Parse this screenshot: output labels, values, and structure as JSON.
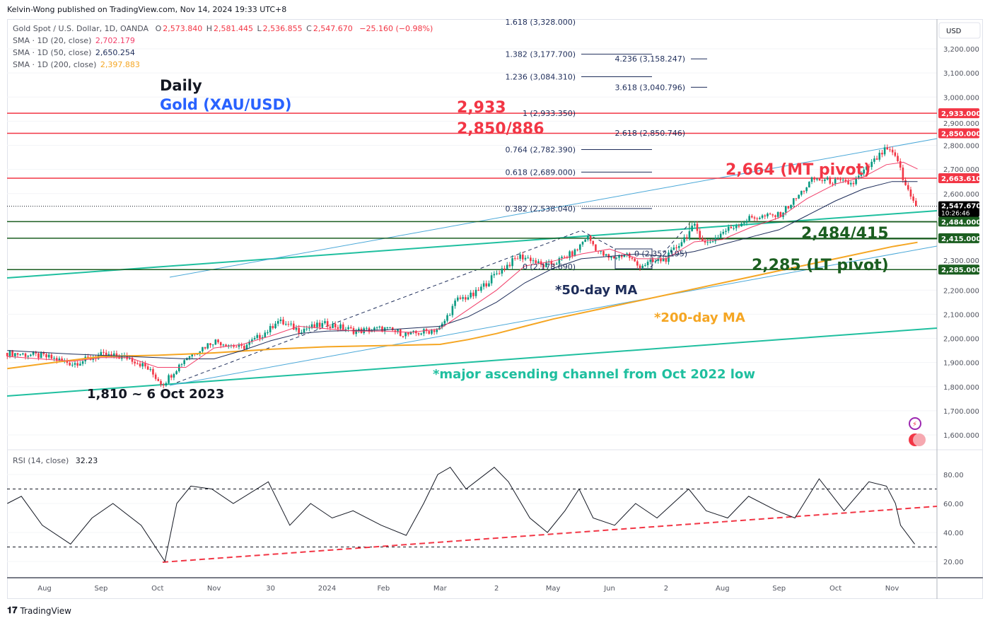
{
  "header": {
    "published": "Kelvin-Wong published on TradingView.com, Nov 14, 2024 19:33 UTC+8"
  },
  "legend": {
    "symbol": "Gold Spot / U.S. Dollar, 1D, OANDA",
    "o_label": "O",
    "o": "2,573.840",
    "h_label": "H",
    "h": "2,581.445",
    "l_label": "L",
    "l": "2,536.855",
    "c_label": "C",
    "c": "2,547.670",
    "change": "−25.160 (−0.98%)",
    "sma20_label": "SMA · 1D (20, close)",
    "sma20": "2,702.179",
    "sma50_label": "SMA · 1D (50, close)",
    "sma50": "2,650.254",
    "sma200_label": "SMA · 1D (200, close)",
    "sma200": "2,397.883",
    "rsi_label": "RSI (14, close)",
    "rsi": "32.23"
  },
  "colors": {
    "up": "#089981",
    "down": "#f23645",
    "sma20": "#f23f6a",
    "sma50": "#1e2d5a",
    "sma200": "#f5a623",
    "red_level": "#f23645",
    "green_level": "#1b5e20",
    "teal": "#1fbf9f",
    "lightblue": "#4aa8d8",
    "rsi": "#131722"
  },
  "annotations": {
    "timeframe": "Daily",
    "instrument": "Gold (XAU/USD)",
    "r1": "2,933",
    "r2": "2,850/886",
    "mt_pivot": "2,664 (MT pivot)",
    "support1": "2,484/415",
    "lt_pivot": "2,285 (LT pivot)",
    "ma50": "*50-day MA",
    "ma200": "*200-day MA",
    "channel": "*major ascending channel from Oct 2022 low",
    "low": "1,810 ~ 6 Oct 2023"
  },
  "fib_left": [
    {
      "label": "1.618 (3,328.000)",
      "price": 3328
    },
    {
      "label": "1.382 (3,177.700)",
      "price": 3177.7
    },
    {
      "label": "1.236 (3,084.310)",
      "price": 3084.31
    },
    {
      "label": "1 (2,933.350)",
      "price": 2933.35
    },
    {
      "label": "0.764 (2,782.390)",
      "price": 2782.39
    },
    {
      "label": "0.618 (2,689.000)",
      "price": 2689
    },
    {
      "label": "0.382 (2,538.040)",
      "price": 2538.04
    },
    {
      "label": "0 (2,178.690)",
      "price": 2178.69
    }
  ],
  "fib_right": [
    {
      "label": "4.236 (3,158.247)",
      "price": 3158.247
    },
    {
      "label": "3.618 (3,040.796)",
      "price": 3040.796
    },
    {
      "label": "2.618 (2,850.746)",
      "price": 2850.746
    },
    {
      "label": "0 (2,352.195)",
      "price": 2352.195
    }
  ],
  "price_axis": {
    "currency": "USD",
    "ticks": [
      "3,200.000",
      "3,100.000",
      "3,000.000",
      "2,900.000",
      "2,800.000",
      "2,700.000",
      "2,600.000",
      "2,300.000",
      "2,200.000",
      "2,100.000",
      "2,000.000",
      "1,900.000",
      "1,800.000",
      "1,700.000",
      "1,600.000"
    ],
    "tick_values": [
      3200,
      3100,
      3000,
      2900,
      2800,
      2700,
      2600,
      2300,
      2200,
      2100,
      2000,
      1900,
      1800,
      1700,
      1600
    ],
    "levels": [
      {
        "label": "2,933.000",
        "price": 2933,
        "kind": "red"
      },
      {
        "label": "2,850.000",
        "price": 2850,
        "kind": "red"
      },
      {
        "label": "2,663.610",
        "price": 2663.61,
        "kind": "red"
      },
      {
        "label": "2,484.000",
        "price": 2484,
        "kind": "green"
      },
      {
        "label": "2,415.000",
        "price": 2415,
        "kind": "green"
      },
      {
        "label": "2,285.000",
        "price": 2285,
        "kind": "green"
      }
    ],
    "last_price": "2,547.670",
    "last_price_value": 2547.67,
    "countdown": "10:26:46"
  },
  "rsi_axis": {
    "ticks": [
      "80.00",
      "60.00",
      "40.00",
      "20.00"
    ],
    "tick_values": [
      80,
      60,
      40,
      20
    ],
    "overbought": 70,
    "oversold": 30
  },
  "time_axis": {
    "labels": [
      "Aug",
      "Sep",
      "Oct",
      "Nov",
      "30",
      "2024",
      "Feb",
      "Mar",
      "2",
      "May",
      "Jun",
      "2",
      "Aug",
      "Sep",
      "Oct",
      "Nov"
    ]
  },
  "footer": {
    "brand": "TradingView"
  },
  "chart_data": {
    "type": "candlestick",
    "title": "Gold Spot / U.S. Dollar, 1D, OANDA",
    "x_unit": "months since Aug 2023",
    "ylim": [
      1550,
      3330
    ],
    "close_path": [
      [
        -0.66,
        1940
      ],
      [
        -0.2,
        1930
      ],
      [
        0,
        1925
      ],
      [
        0.5,
        1895
      ],
      [
        1,
        1930
      ],
      [
        1.5,
        1920
      ],
      [
        1.8,
        1880
      ],
      [
        2.09,
        1810
      ],
      [
        2.5,
        1920
      ],
      [
        3,
        1990
      ],
      [
        3.5,
        1960
      ],
      [
        4,
        2040
      ],
      [
        4.1,
        2075
      ],
      [
        4.5,
        2035
      ],
      [
        5,
        2060
      ],
      [
        5.5,
        2030
      ],
      [
        6,
        2040
      ],
      [
        6.45,
        2015
      ],
      [
        7,
        2040
      ],
      [
        7.3,
        2160
      ],
      [
        7.6,
        2180
      ],
      [
        8,
        2270
      ],
      [
        8.4,
        2340
      ],
      [
        8.6,
        2330
      ],
      [
        8.8,
        2300
      ],
      [
        9,
        2310
      ],
      [
        9.4,
        2360
      ],
      [
        9.6,
        2425
      ],
      [
        9.8,
        2360
      ],
      [
        10,
        2330
      ],
      [
        10.3,
        2350
      ],
      [
        10.5,
        2300
      ],
      [
        11,
        2330
      ],
      [
        11.3,
        2410
      ],
      [
        11.5,
        2465
      ],
      [
        11.7,
        2390
      ],
      [
        11.9,
        2420
      ],
      [
        12,
        2440
      ],
      [
        12.5,
        2500
      ],
      [
        13,
        2510
      ],
      [
        13.3,
        2580
      ],
      [
        13.6,
        2660
      ],
      [
        14,
        2650
      ],
      [
        14.3,
        2640
      ],
      [
        14.6,
        2715
      ],
      [
        14.9,
        2785
      ],
      [
        15.1,
        2740
      ],
      [
        15.2,
        2650
      ],
      [
        15.45,
        2548
      ]
    ],
    "sma20": [
      [
        -0.66,
        1925
      ],
      [
        0.5,
        1905
      ],
      [
        1,
        1920
      ],
      [
        1.5,
        1920
      ],
      [
        2,
        1880
      ],
      [
        2.5,
        1880
      ],
      [
        3,
        1960
      ],
      [
        3.5,
        1975
      ],
      [
        4,
        2010
      ],
      [
        4.5,
        2050
      ],
      [
        5,
        2040
      ],
      [
        5.5,
        2030
      ],
      [
        6,
        2030
      ],
      [
        6.5,
        2025
      ],
      [
        7,
        2040
      ],
      [
        7.5,
        2120
      ],
      [
        8,
        2200
      ],
      [
        8.5,
        2300
      ],
      [
        9,
        2320
      ],
      [
        9.5,
        2350
      ],
      [
        10,
        2370
      ],
      [
        10.5,
        2330
      ],
      [
        11,
        2330
      ],
      [
        11.5,
        2400
      ],
      [
        12,
        2410
      ],
      [
        12.5,
        2460
      ],
      [
        13,
        2500
      ],
      [
        13.5,
        2580
      ],
      [
        14,
        2640
      ],
      [
        14.5,
        2670
      ],
      [
        14.9,
        2720
      ],
      [
        15.2,
        2730
      ],
      [
        15.45,
        2702
      ]
    ],
    "sma50": [
      [
        -0.66,
        1950
      ],
      [
        0.5,
        1935
      ],
      [
        1.5,
        1925
      ],
      [
        2.5,
        1915
      ],
      [
        3,
        1915
      ],
      [
        3.5,
        1950
      ],
      [
        4,
        1990
      ],
      [
        4.5,
        2020
      ],
      [
        5,
        2030
      ],
      [
        6,
        2035
      ],
      [
        7,
        2050
      ],
      [
        7.5,
        2090
      ],
      [
        8,
        2150
      ],
      [
        8.5,
        2230
      ],
      [
        9,
        2290
      ],
      [
        9.5,
        2330
      ],
      [
        10,
        2340
      ],
      [
        10.5,
        2350
      ],
      [
        11,
        2340
      ],
      [
        11.5,
        2360
      ],
      [
        12,
        2390
      ],
      [
        12.5,
        2420
      ],
      [
        13,
        2450
      ],
      [
        13.5,
        2510
      ],
      [
        14,
        2570
      ],
      [
        14.5,
        2620
      ],
      [
        15,
        2650
      ],
      [
        15.45,
        2650
      ]
    ],
    "sma200": [
      [
        -0.66,
        1875
      ],
      [
        0,
        1895
      ],
      [
        1,
        1925
      ],
      [
        2,
        1930
      ],
      [
        3,
        1940
      ],
      [
        4,
        1955
      ],
      [
        5,
        1965
      ],
      [
        6,
        1970
      ],
      [
        7,
        1975
      ],
      [
        7.5,
        1995
      ],
      [
        8,
        2020
      ],
      [
        8.5,
        2050
      ],
      [
        9,
        2080
      ],
      [
        10,
        2130
      ],
      [
        11,
        2180
      ],
      [
        12,
        2230
      ],
      [
        13,
        2280
      ],
      [
        14,
        2330
      ],
      [
        15,
        2380
      ],
      [
        15.45,
        2398
      ]
    ],
    "rsi": [
      [
        -0.66,
        60
      ],
      [
        -0.41,
        65
      ],
      [
        -0.04,
        45
      ],
      [
        0.46,
        32
      ],
      [
        0.84,
        50
      ],
      [
        1.21,
        60
      ],
      [
        1.71,
        45
      ],
      [
        2.13,
        20
      ],
      [
        2.34,
        60
      ],
      [
        2.59,
        72
      ],
      [
        2.96,
        70
      ],
      [
        3.34,
        60
      ],
      [
        3.96,
        75
      ],
      [
        4.34,
        45
      ],
      [
        4.71,
        60
      ],
      [
        5.09,
        50
      ],
      [
        5.46,
        55
      ],
      [
        5.96,
        45
      ],
      [
        6.4,
        38
      ],
      [
        6.71,
        60
      ],
      [
        6.96,
        80
      ],
      [
        7.18,
        85
      ],
      [
        7.46,
        70
      ],
      [
        7.96,
        85
      ],
      [
        8.21,
        75
      ],
      [
        8.59,
        50
      ],
      [
        8.9,
        40
      ],
      [
        9.21,
        55
      ],
      [
        9.46,
        70
      ],
      [
        9.71,
        50
      ],
      [
        10.09,
        45
      ],
      [
        10.46,
        60
      ],
      [
        10.84,
        50
      ],
      [
        11.4,
        70
      ],
      [
        11.71,
        55
      ],
      [
        12.09,
        50
      ],
      [
        12.46,
        65
      ],
      [
        12.96,
        55
      ],
      [
        13.28,
        50
      ],
      [
        13.71,
        77
      ],
      [
        14.15,
        55
      ],
      [
        14.59,
        75
      ],
      [
        14.9,
        72
      ],
      [
        15.06,
        60
      ],
      [
        15.15,
        45
      ],
      [
        15.4,
        32
      ]
    ]
  }
}
